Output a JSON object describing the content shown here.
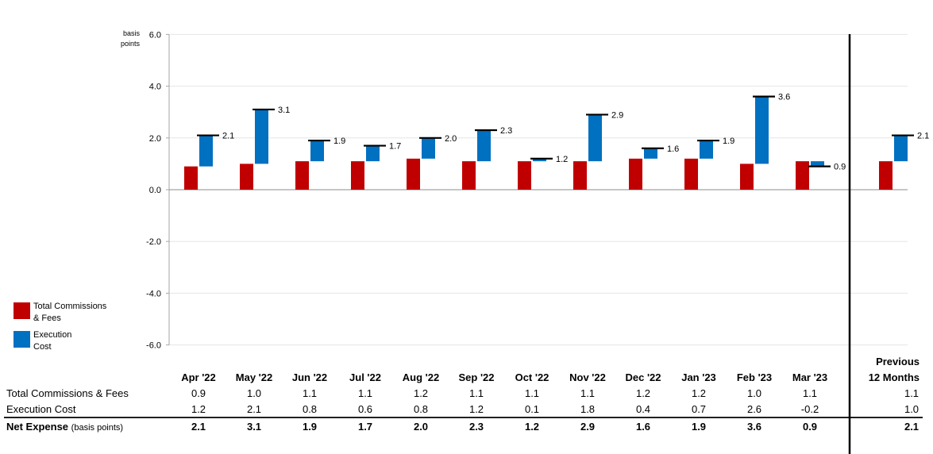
{
  "chart_data": {
    "type": "bar",
    "subtype": "stacked-waterfall",
    "ylabel": "basis points",
    "ylim": [
      -6.0,
      6.0
    ],
    "yticks": [
      "6.0",
      "4.0",
      "2.0",
      "0.0",
      "-2.0",
      "-4.0",
      "-6.0"
    ],
    "ytick_values": [
      6,
      4,
      2,
      0,
      -2,
      -4,
      -6
    ],
    "grid": true,
    "categories": [
      "Apr '22",
      "May '22",
      "Jun '22",
      "Jul '22",
      "Aug '22",
      "Sep '22",
      "Oct '22",
      "Nov '22",
      "Dec '22",
      "Jan '23",
      "Feb '23",
      "Mar '23"
    ],
    "summary_category": "Previous 12 Months",
    "summary_category_lines": [
      "Previous",
      "12 Months"
    ],
    "series": [
      {
        "name": "Total Commissions & Fees",
        "legend_lines": [
          "Total Commissions",
          "& Fees"
        ],
        "color": "#C00000",
        "values": [
          0.9,
          1.0,
          1.1,
          1.1,
          1.2,
          1.1,
          1.1,
          1.1,
          1.2,
          1.2,
          1.0,
          1.1
        ],
        "summary": 1.1
      },
      {
        "name": "Execution Cost",
        "legend_lines": [
          "Execution",
          "Cost"
        ],
        "color": "#0070C0",
        "values": [
          1.2,
          2.1,
          0.8,
          0.6,
          0.8,
          1.2,
          0.1,
          1.8,
          0.4,
          0.7,
          2.6,
          -0.2
        ],
        "summary": 1.0
      }
    ],
    "net": {
      "name": "Net Expense",
      "values": [
        2.1,
        3.1,
        1.9,
        1.7,
        2.0,
        2.3,
        1.2,
        2.9,
        1.6,
        1.9,
        3.6,
        0.9
      ],
      "summary": 2.1
    }
  },
  "table": {
    "rows": [
      {
        "label": "Total Commissions & Fees",
        "values": [
          "0.9",
          "1.0",
          "1.1",
          "1.1",
          "1.2",
          "1.1",
          "1.1",
          "1.1",
          "1.2",
          "1.2",
          "1.0",
          "1.1"
        ],
        "summary": "1.1"
      },
      {
        "label": "Execution Cost",
        "values": [
          "1.2",
          "2.1",
          "0.8",
          "0.6",
          "0.8",
          "1.2",
          "0.1",
          "1.8",
          "0.4",
          "0.7",
          "2.6",
          "-0.2"
        ],
        "summary": "1.0"
      }
    ],
    "net_row": {
      "label": "Net Expense",
      "label_suffix": "(basis points)",
      "values": [
        "2.1",
        "3.1",
        "1.9",
        "1.7",
        "2.0",
        "2.3",
        "1.2",
        "2.9",
        "1.6",
        "1.9",
        "3.6",
        "0.9"
      ],
      "summary": "2.1"
    }
  },
  "colors": {
    "commissions": "#C00000",
    "execution": "#0070C0",
    "grid": "#E6E6E6",
    "axis": "#A6A6A6"
  }
}
